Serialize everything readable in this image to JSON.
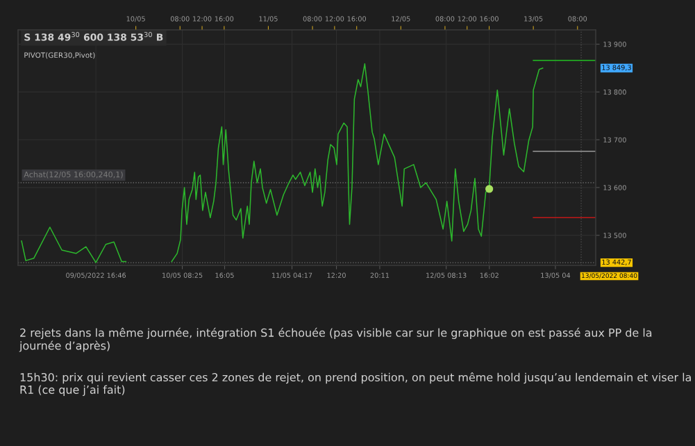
{
  "chart_data": {
    "type": "line",
    "annotations": [
      "S 138 49$^{30}$ 600 138 53$^{30}$ B",
      "PIVOT(GER30,Pivot)",
      "13 849,3",
      "Achat(12/05 16:00,240,1)",
      "2 rejets dans la même journée, intégration S1 échouée (pas visible car sur le graphique on est passé aux PP de la journée d’après)",
      "15h30: prix qui revient casser ces 2 zones de rejet, on prend position, on peut même hold jusqu’au lendemain et viser la R1 (ce que j’ai fait)"
    ],
    "series": [
      {
        "color": "#2db82d",
        "x": [
          "2022-05-09T03:18",
          "2022-05-09T04:04",
          "2022-05-09T05:32",
          "2022-05-09T08:26",
          "2022-05-09T10:36",
          "2022-05-09T13:10",
          "2022-05-09T14:58",
          "2022-05-09T16:46",
          "2022-05-09T18:34",
          "2022-05-09T20:02",
          "2022-05-09T21:26",
          "2022-05-09T22:12",
          "2022-05-10T01:56",
          "2022-05-10T06:30",
          "2022-05-10T07:29",
          "2022-05-10T08:06",
          "2022-05-10T08:22",
          "2022-05-10T08:48",
          "2022-05-10T09:13",
          "2022-05-10T09:38",
          "2022-05-10T10:14",
          "2022-05-10T10:39",
          "2022-05-10T10:54",
          "2022-05-10T11:20",
          "2022-05-10T11:40",
          "2022-05-10T12:06",
          "2022-05-10T12:37",
          "2022-05-10T13:29",
          "2022-05-10T14:06",
          "2022-05-10T14:31",
          "2022-05-10T14:57",
          "2022-05-10T15:34",
          "2022-05-10T15:50",
          "2022-05-10T16:18",
          "2022-05-10T16:47",
          "2022-05-10T17:36",
          "2022-05-10T18:11",
          "2022-05-10T19:01",
          "2022-05-10T19:23",
          "2022-05-10T20:12",
          "2022-05-10T20:33",
          "2022-05-10T20:55",
          "2022-05-10T21:24",
          "2022-05-10T21:59",
          "2022-05-10T22:34",
          "2022-05-10T22:56",
          "2022-05-10T23:39",
          "2022-05-11T00:23",
          "2022-05-11T01:34",
          "2022-05-11T02:45",
          "2022-05-11T03:44",
          "2022-05-11T04:28",
          "2022-05-11T04:55",
          "2022-05-11T05:48",
          "2022-05-11T06:36",
          "2022-05-11T07:34",
          "2022-05-11T08:00",
          "2022-05-11T08:28",
          "2022-05-11T08:56",
          "2022-05-11T09:18",
          "2022-05-11T09:46",
          "2022-05-11T10:14",
          "2022-05-11T10:47",
          "2022-05-11T11:16",
          "2022-05-11T11:54",
          "2022-05-11T12:23",
          "2022-05-11T12:38",
          "2022-05-11T13:40",
          "2022-05-11T14:17",
          "2022-05-11T14:32",
          "2022-05-11T14:43",
          "2022-05-11T15:09",
          "2022-05-11T15:35",
          "2022-05-11T16:16",
          "2022-05-11T16:44",
          "2022-05-11T17:28",
          "2022-05-11T18:01",
          "2022-05-11T18:49",
          "2022-05-11T19:11",
          "2022-05-11T19:55",
          "2022-05-11T20:58",
          "2022-05-11T22:52",
          "2022-05-12T00:14",
          "2022-05-12T00:37",
          "2022-05-12T02:20",
          "2022-05-12T03:35",
          "2022-05-12T04:34",
          "2022-05-12T06:24",
          "2022-05-12T07:39",
          "2022-05-12T08:21",
          "2022-05-12T09:14",
          "2022-05-12T09:52",
          "2022-05-12T10:29",
          "2022-05-12T11:23",
          "2022-05-12T12:06",
          "2022-05-12T12:43",
          "2022-05-12T13:25",
          "2022-05-12T14:03",
          "2022-05-12T14:35",
          "2022-05-12T15:23",
          "2022-05-12T16:01",
          "2022-05-12T16:35",
          "2022-05-12T17:29",
          "2022-05-12T18:38",
          "2022-05-12T19:40",
          "2022-05-12T20:34",
          "2022-05-12T21:21",
          "2022-05-12T22:16",
          "2022-05-12T23:10",
          "2022-05-12T23:53",
          "2022-05-13T00:00",
          "2022-05-13T01:03",
          "2022-05-13T01:42"
        ],
        "values": [
          13488,
          13447,
          13452,
          13517,
          13469,
          13462,
          13476,
          13443,
          13481,
          13486,
          13445,
          13445,
          null,
          13445,
          13462,
          13491,
          13552,
          13600,
          13523,
          13575,
          13596,
          13632,
          13575,
          13622,
          13626,
          13552,
          13590,
          13537,
          13571,
          13610,
          13683,
          13727,
          13648,
          13721,
          13639,
          13542,
          13532,
          13556,
          13494,
          13561,
          13523,
          13610,
          13655,
          13610,
          13639,
          13600,
          13567,
          13596,
          13542,
          13585,
          13610,
          13626,
          13617,
          13632,
          13604,
          13632,
          13590,
          13639,
          13600,
          13625,
          13561,
          13590,
          13658,
          13690,
          13683,
          13648,
          13712,
          13735,
          13727,
          13600,
          13523,
          13600,
          13785,
          13826,
          13811,
          13859,
          13804,
          13716,
          13702,
          13648,
          13712,
          13663,
          13561,
          13639,
          13648,
          13600,
          13610,
          13575,
          13513,
          13571,
          13488,
          13639,
          13571,
          13508,
          13523,
          13552,
          13619,
          13513,
          13498,
          13590,
          13600,
          13706,
          13804,
          13668,
          13765,
          13692,
          13644,
          13633,
          13698,
          13727,
          13804,
          13847,
          13850
        ]
      },
      {
        "type": "line",
        "color": "#22c022",
        "x": [
          "2022-05-13T00:00",
          "2022-05-13T11:10"
        ],
        "values": [
          13866,
          13866
        ]
      },
      {
        "type": "line",
        "color": "#9a9a9a",
        "x": [
          "2022-05-13T00:00",
          "2022-05-13T11:10"
        ],
        "values": [
          13676,
          13676
        ]
      },
      {
        "type": "line",
        "color": "#c01818",
        "x": [
          "2022-05-13T00:00",
          "2022-05-13T11:10"
        ],
        "values": [
          13537,
          13537
        ]
      },
      {
        "type": "scatter",
        "color": "#a8e060",
        "marker": "circle",
        "x": [
          "2022-05-12T16:01"
        ],
        "values": [
          13597
        ]
      }
    ],
    "ref_lines": [
      {
        "axis": "y",
        "value": 13610,
        "line_style": "dotted",
        "color": "#6a6a6a"
      },
      {
        "axis": "y",
        "value": 13442.7,
        "label": "13 442,7",
        "line_style": "dotted",
        "color": "#6a6a6a"
      },
      {
        "axis": "x",
        "value": "2022-05-13T08:40",
        "label": "13/05/2022 08:40",
        "line_style": "dotted",
        "color": "#4a4a4a"
      }
    ],
    "xlim": [
      "2022-05-09T02:40",
      "2022-05-13T11:18"
    ],
    "xticks": [
      {
        "value": "2022-05-09T16:46",
        "label": "09/05/2022 16:46"
      },
      {
        "value": "2022-05-10T08:25",
        "label": "10/05 08:25"
      },
      {
        "value": "2022-05-10T16:05",
        "label": "16:05"
      },
      {
        "value": "2022-05-11T04:17",
        "label": "11/05 04:17"
      },
      {
        "value": "2022-05-11T12:20",
        "label": "12:20"
      },
      {
        "value": "2022-05-11T20:11",
        "label": "20:11"
      },
      {
        "value": "2022-05-12T08:13",
        "label": "12/05 08:13"
      },
      {
        "value": "2022-05-12T16:02",
        "label": "16:02"
      },
      {
        "value": "2022-05-13T04:00",
        "label": "13/05 04"
      }
    ],
    "x2lim": [
      "2022-05-09T02:40",
      "2022-05-13T11:18"
    ],
    "x2ticks": [
      {
        "value": "2022-05-10T00:00",
        "label": "10/05"
      },
      {
        "value": "2022-05-10T08:00",
        "label": "08:00"
      },
      {
        "value": "2022-05-10T12:00",
        "label": "12:00"
      },
      {
        "value": "2022-05-10T16:00",
        "label": "16:00"
      },
      {
        "value": "2022-05-11T00:00",
        "label": "11/05"
      },
      {
        "value": "2022-05-11T08:00",
        "label": "08:00"
      },
      {
        "value": "2022-05-11T12:00",
        "label": "12:00"
      },
      {
        "value": "2022-05-11T16:00",
        "label": "16:00"
      },
      {
        "value": "2022-05-12T00:00",
        "label": "12/05"
      },
      {
        "value": "2022-05-12T08:00",
        "label": "08:00"
      },
      {
        "value": "2022-05-12T12:00",
        "label": "12:00"
      },
      {
        "value": "2022-05-12T16:00",
        "label": "16:00"
      },
      {
        "value": "2022-05-13T00:00",
        "label": "13/05"
      },
      {
        "value": "2022-05-13T08:00",
        "label": "08:00"
      }
    ],
    "ylim": [
      13437,
      13930
    ],
    "yticks": [
      {
        "value": 13500,
        "label": "13 500"
      },
      {
        "value": 13600,
        "label": "13 600"
      },
      {
        "value": 13700,
        "label": "13 700"
      },
      {
        "value": 13800,
        "label": "13 800"
      },
      {
        "value": 13900,
        "label": "13 900"
      }
    ],
    "grid": true,
    "legend": false
  }
}
